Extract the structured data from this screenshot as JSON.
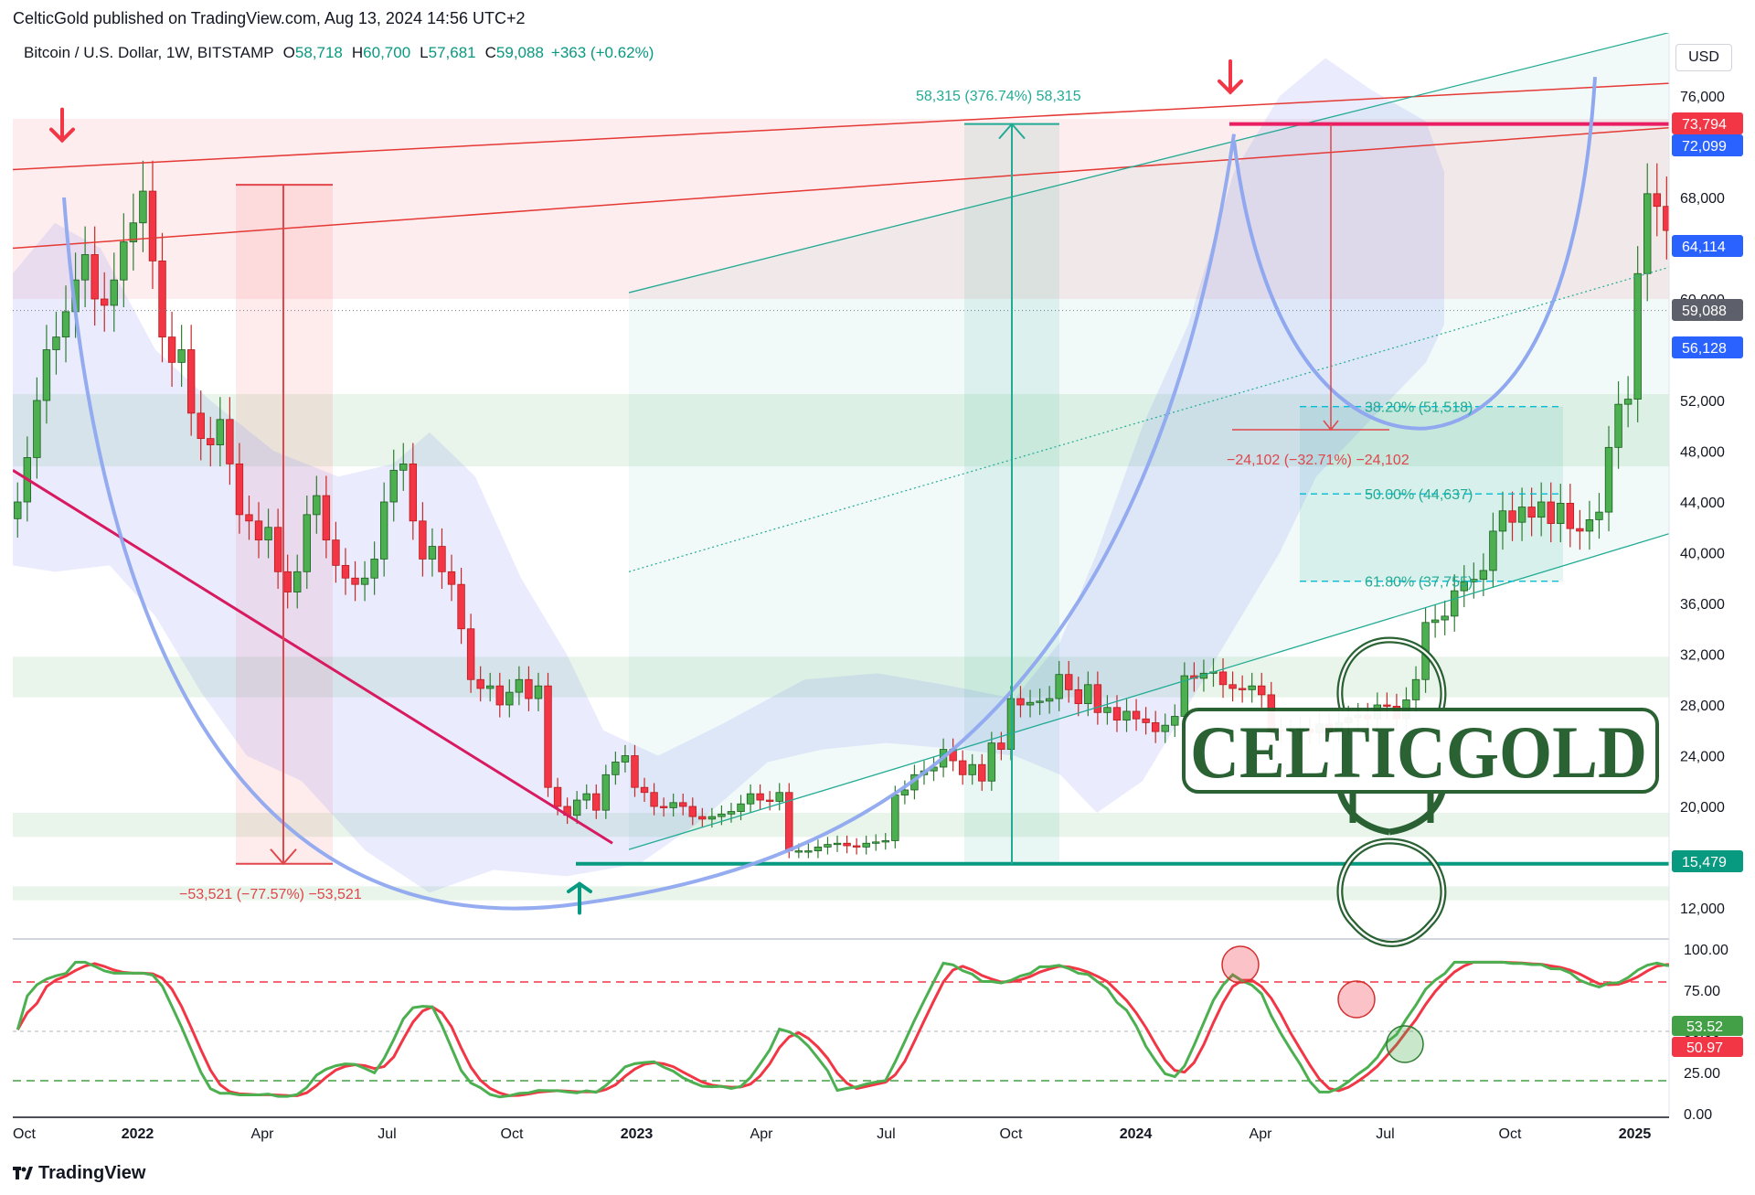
{
  "header": {
    "published_by": "CelticGold published on TradingView.com, Aug 13, 2024 14:56 UTC+2",
    "symbol": "Bitcoin / U.S. Dollar, 1W, BITSTAMP",
    "open_label": "O",
    "open": "58,718",
    "high_label": "H",
    "high": "60,700",
    "low_label": "L",
    "low": "57,681",
    "close_label": "C",
    "close": "59,088",
    "change": "+363 (+0.62%)"
  },
  "currency_label": "USD",
  "footer": {
    "brand": "TradingView"
  },
  "watermark": "CELTICGOLD",
  "chart_data": {
    "type": "candlestick",
    "timeframe": "1W",
    "price_axis": {
      "ticks": [
        12000,
        16000,
        20000,
        24000,
        28000,
        32000,
        36000,
        40000,
        44000,
        48000,
        52000,
        56000,
        60000,
        64000,
        68000,
        72000,
        76000
      ],
      "tick_labels": [
        "12,000",
        "16,000",
        "20,000",
        "24,000",
        "28,000",
        "32,000",
        "36,000",
        "40,000",
        "44,000",
        "48,000",
        "52,000",
        "56,000",
        "60,000",
        "64,000",
        "68,000",
        "72,000",
        "76,000"
      ],
      "ylim": [
        10000,
        78500
      ]
    },
    "time_axis": {
      "labels": [
        {
          "t": 0.0,
          "text": "Oct",
          "bold": false
        },
        {
          "t": 1.0,
          "text": "2022",
          "bold": true
        },
        {
          "t": 2.0,
          "text": "Apr",
          "bold": false
        },
        {
          "t": 3.0,
          "text": "Jul",
          "bold": false
        },
        {
          "t": 4.0,
          "text": "Oct",
          "bold": false
        },
        {
          "t": 5.0,
          "text": "2023",
          "bold": true
        },
        {
          "t": 6.0,
          "text": "Apr",
          "bold": false
        },
        {
          "t": 7.0,
          "text": "Jul",
          "bold": false
        },
        {
          "t": 8.0,
          "text": "Oct",
          "bold": false
        },
        {
          "t": 9.0,
          "text": "2024",
          "bold": true
        },
        {
          "t": 10.0,
          "text": "Apr",
          "bold": false
        },
        {
          "t": 11.0,
          "text": "Jul",
          "bold": false
        },
        {
          "t": 12.0,
          "text": "Oct",
          "bold": false
        },
        {
          "t": 13.0,
          "text": "2025",
          "bold": true
        }
      ]
    },
    "close_series": [
      44000,
      47500,
      52000,
      56000,
      57000,
      59000,
      61500,
      63500,
      60000,
      59500,
      61500,
      64500,
      66000,
      68500,
      63000,
      57000,
      55000,
      56000,
      51000,
      49000,
      48500,
      50500,
      47000,
      43000,
      42500,
      41000,
      42000,
      38500,
      36900,
      38500,
      43000,
      44500,
      41000,
      39000,
      38000,
      37500,
      38000,
      39500,
      44000,
      46500,
      47000,
      42500,
      39500,
      40500,
      38500,
      37500,
      34000,
      30000,
      29300,
      29500,
      28000,
      29000,
      30000,
      28500,
      29500,
      21500,
      20000,
      19300,
      20500,
      21000,
      19700,
      22500,
      23500,
      24000,
      21500,
      21100,
      20000,
      19900,
      20300,
      20000,
      19200,
      19000,
      19200,
      19400,
      19600,
      20200,
      21000,
      20500,
      20400,
      21100,
      16500,
      16500,
      16500,
      16800,
      17000,
      17100,
      16900,
      16800,
      17100,
      17200,
      17300,
      20900,
      21300,
      22500,
      22800,
      23100,
      24500,
      23600,
      22500,
      23300,
      22000,
      25000,
      24500,
      28500,
      28000,
      28200,
      28300,
      28500,
      30400,
      29200,
      28100,
      29600,
      27400,
      27800,
      26800,
      27500,
      26900,
      26600,
      25900,
      26400,
      27100,
      30300,
      30100,
      30500,
      30600,
      29600,
      29300,
      29200,
      29500,
      28800,
      26000,
      25900,
      26000,
      26100,
      25800,
      26500,
      25900,
      26600,
      27000,
      27200,
      26900,
      28000,
      27900,
      26900,
      28400,
      30000,
      34500,
      34700,
      35000,
      37000,
      37700,
      37900,
      38600,
      41700,
      43300,
      42400,
      43600,
      42800,
      44000,
      42300,
      43900,
      41900,
      41700,
      42600,
      43200,
      48300,
      51700,
      52100,
      62000,
      68300,
      67300,
      65400,
      69600,
      69600,
      68900,
      70500,
      65600,
      64000,
      63100,
      64900,
      63800,
      66200,
      67000,
      68500,
      69000,
      67100,
      66200,
      64000,
      60300,
      62500,
      63500,
      56800,
      57500,
      56000,
      58000,
      65000,
      68000,
      65100,
      59000,
      59088
    ]
  },
  "levels": {
    "ath": "73,794",
    "level_72099": "72,099",
    "level_64114": "64,114",
    "last_price": "59,088",
    "level_56128": "56,128",
    "low_2022": "15,479"
  },
  "measures": {
    "decline_2022": "−53,521 (−77.57%) −53,521",
    "rally_2023": "58,315 (376.74%) 58,315",
    "correction_2024": "−24,102 (−32.71%) −24,102"
  },
  "fibonacci": [
    {
      "label": "38.20% (51,518)",
      "value": 51518
    },
    {
      "label": "50.00% (44,637)",
      "value": 44637
    },
    {
      "label": "61.80% (37,755)",
      "value": 37755
    }
  ],
  "oscillator": {
    "axis_labels": [
      "100.00",
      "75.00",
      "50.00",
      "25.00",
      "0.00"
    ],
    "axis_values": [
      100,
      75,
      50,
      25,
      0
    ],
    "upper_band": 80,
    "lower_band": 20,
    "k_value": "53.52",
    "d_value": "50.97",
    "colors": {
      "k": "#4caf50",
      "d": "#f23645"
    }
  },
  "colors": {
    "up": "#089981",
    "down": "#f23645",
    "up_fill": "#4caf50",
    "channel": "#22ab94",
    "resistance": "#f23645",
    "arc": "#8fa8ef",
    "trend": "#d81b60"
  }
}
